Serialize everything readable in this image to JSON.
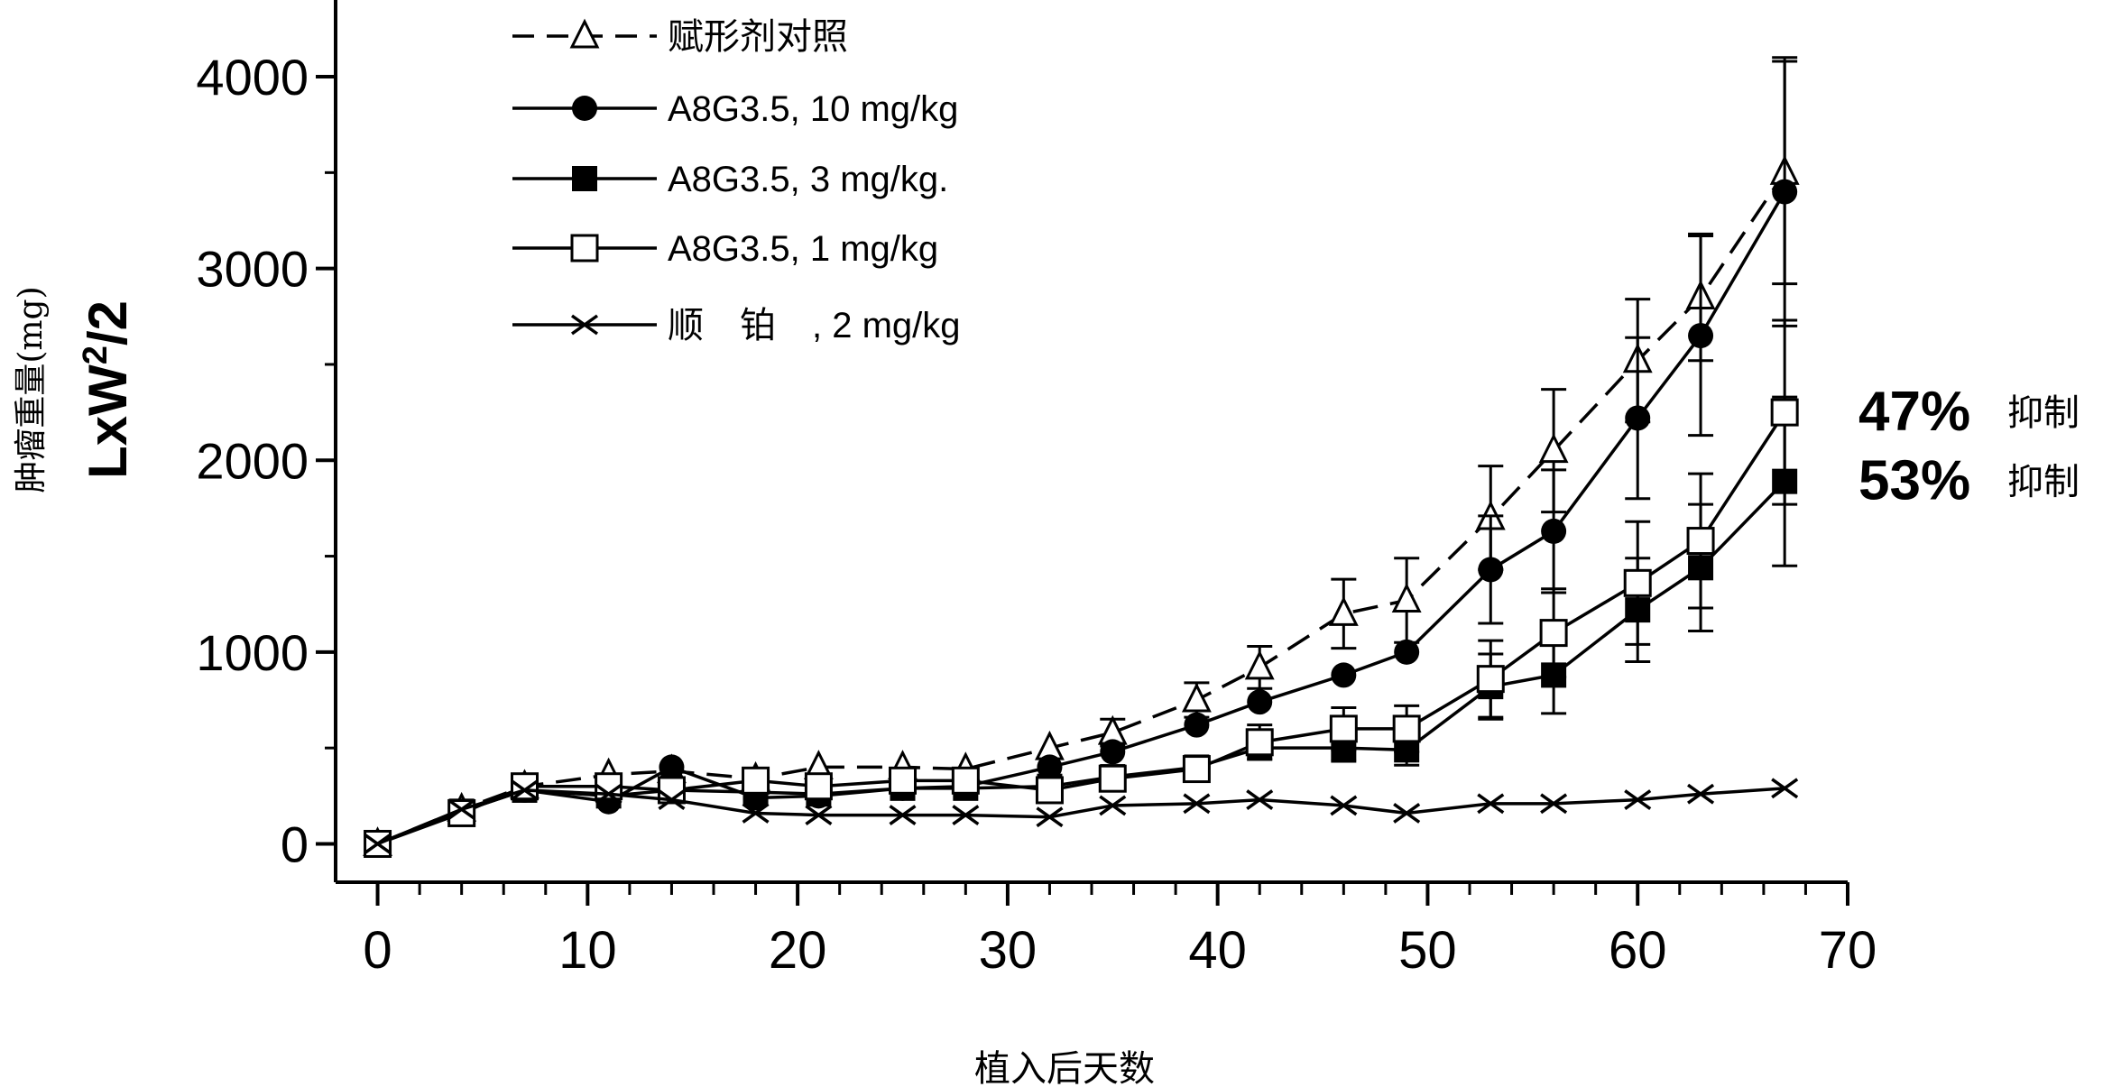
{
  "chart_data": {
    "type": "line",
    "title": "",
    "xlabel": "植入后天数",
    "ylabel": "LxW²/2",
    "ylabel_super": "2",
    "ylabel_main_prefix": "LxW",
    "ylabel_main_suffix": "/2",
    "ylabel_secondary": "肿瘤重量(mg)",
    "xlim": [
      -2,
      70
    ],
    "ylim": [
      -200,
      4400
    ],
    "xticks": [
      0,
      10,
      20,
      30,
      40,
      50,
      60,
      70
    ],
    "yticks": [
      0,
      1000,
      2000,
      3000,
      4000
    ],
    "xtick_labels": [
      "0",
      "10",
      "20",
      "30",
      "40",
      "50",
      "60",
      "70"
    ],
    "ytick_labels": [
      "0",
      "1000",
      "2000",
      "3000",
      "4000"
    ],
    "x_minor_step": 2,
    "legend_position": "top-left",
    "series": [
      {
        "name": "赋形剂对照",
        "marker": "triangle-open",
        "dashed": true,
        "x": [
          0,
          4,
          7,
          11,
          14,
          18,
          21,
          25,
          28,
          32,
          35,
          39,
          42,
          46,
          49,
          53,
          56,
          60,
          63,
          67
        ],
        "y": [
          0,
          180,
          300,
          360,
          380,
          340,
          400,
          400,
          390,
          500,
          580,
          750,
          920,
          1200,
          1270,
          1700,
          2050,
          2520,
          2850,
          3500
        ],
        "err": [
          0,
          0,
          0,
          0,
          0,
          0,
          0,
          0,
          0,
          0,
          70,
          90,
          110,
          180,
          220,
          270,
          320,
          320,
          330,
          580
        ]
      },
      {
        "name": "A8G3.5, 10 mg/kg",
        "marker": "circle-filled",
        "dashed": false,
        "x": [
          0,
          4,
          7,
          11,
          14,
          18,
          21,
          25,
          28,
          32,
          35,
          39,
          42,
          46,
          49,
          53,
          56,
          60,
          63,
          67
        ],
        "y": [
          0,
          170,
          280,
          220,
          400,
          240,
          250,
          290,
          300,
          400,
          480,
          620,
          740,
          880,
          1000,
          1430,
          1630,
          2220,
          2650,
          3400
        ],
        "err": [
          0,
          0,
          0,
          0,
          0,
          0,
          0,
          0,
          0,
          0,
          0,
          0,
          0,
          0,
          0,
          280,
          320,
          420,
          520,
          700
        ]
      },
      {
        "name": "A8G3.5, 3 mg/kg.",
        "marker": "square-filled",
        "dashed": false,
        "x": [
          0,
          4,
          7,
          11,
          14,
          18,
          21,
          25,
          28,
          32,
          35,
          39,
          42,
          46,
          49,
          53,
          56,
          60,
          63,
          67
        ],
        "y": [
          0,
          170,
          280,
          250,
          280,
          270,
          260,
          290,
          290,
          300,
          350,
          400,
          500,
          500,
          490,
          820,
          880,
          1220,
          1440,
          1890
        ],
        "err": [
          0,
          0,
          0,
          0,
          0,
          0,
          0,
          0,
          0,
          0,
          0,
          0,
          0,
          70,
          80,
          170,
          200,
          270,
          330,
          440
        ]
      },
      {
        "name": "A8G3.5, 1 mg/kg",
        "marker": "square-open",
        "dashed": false,
        "x": [
          0,
          4,
          7,
          11,
          14,
          18,
          21,
          25,
          28,
          32,
          35,
          39,
          42,
          46,
          49,
          53,
          56,
          60,
          63,
          67
        ],
        "y": [
          0,
          160,
          300,
          300,
          280,
          330,
          300,
          330,
          330,
          280,
          340,
          390,
          530,
          600,
          600,
          860,
          1100,
          1360,
          1580,
          2250
        ],
        "err": [
          0,
          0,
          0,
          0,
          0,
          0,
          0,
          0,
          0,
          0,
          0,
          0,
          90,
          110,
          120,
          200,
          230,
          320,
          350,
          480
        ]
      },
      {
        "name": "顺　铂　, 2 mg/kg",
        "marker": "x",
        "dashed": false,
        "x": [
          0,
          4,
          7,
          11,
          14,
          18,
          21,
          25,
          28,
          32,
          35,
          39,
          42,
          46,
          49,
          53,
          56,
          60,
          63,
          67
        ],
        "y": [
          0,
          180,
          280,
          260,
          230,
          160,
          150,
          150,
          150,
          140,
          200,
          210,
          230,
          200,
          160,
          210,
          210,
          230,
          260,
          290
        ],
        "err": [
          0,
          0,
          0,
          0,
          0,
          0,
          0,
          0,
          0,
          0,
          0,
          0,
          0,
          0,
          0,
          0,
          0,
          0,
          0,
          0
        ]
      }
    ],
    "annotations": [
      {
        "pct": "47%",
        "text": "抑制",
        "series_index": 3
      },
      {
        "pct": "53%",
        "text": "抑制",
        "series_index": 2
      }
    ]
  }
}
